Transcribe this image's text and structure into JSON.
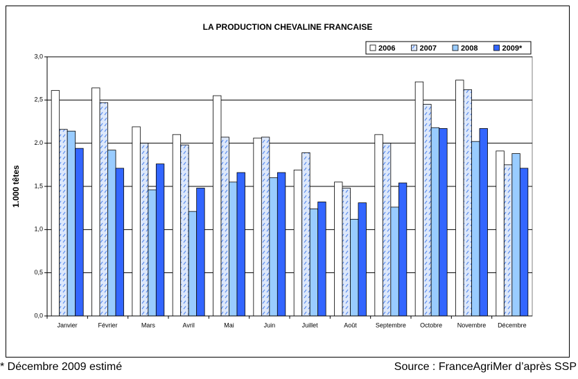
{
  "chart_data": {
    "type": "bar",
    "title": "LA PRODUCTION CHEVALINE FRANCAISE",
    "y_label": "1.000 têtes",
    "categories": [
      "Janvier",
      "Février",
      "Mars",
      "Avril",
      "Mai",
      "Juin",
      "Juillet",
      "Août",
      "Septembre",
      "Octobre",
      "Novembre",
      "Décembre"
    ],
    "series": [
      {
        "name": "2006",
        "color": "#ffffff",
        "values": [
          2.61,
          2.64,
          2.19,
          2.1,
          2.55,
          2.06,
          1.69,
          1.55,
          2.1,
          2.71,
          2.73,
          1.91
        ]
      },
      {
        "name": "2007",
        "color": "#dde8fb",
        "pattern": "hatch",
        "values": [
          2.16,
          2.47,
          2.0,
          1.98,
          2.07,
          2.07,
          1.89,
          1.48,
          2.0,
          2.45,
          2.62,
          1.75
        ]
      },
      {
        "name": "2008",
        "color": "#99ccff",
        "values": [
          2.14,
          1.92,
          1.46,
          1.21,
          1.55,
          1.6,
          1.24,
          1.12,
          1.26,
          2.18,
          2.02,
          1.88
        ]
      },
      {
        "name": "2009*",
        "color": "#3366ff",
        "values": [
          1.94,
          1.71,
          1.76,
          1.48,
          1.66,
          1.66,
          1.32,
          1.31,
          1.54,
          2.17,
          2.17,
          1.71
        ]
      }
    ],
    "ylim": [
      0,
      3
    ],
    "yticks": [
      {
        "value": 0,
        "label": "0,0"
      },
      {
        "value": 0.5,
        "label": "0,5"
      },
      {
        "value": 1,
        "label": "1,0"
      },
      {
        "value": 1.5,
        "label": "1,5"
      },
      {
        "value": 2,
        "label": "2.0"
      },
      {
        "value": 2.5,
        "label": "2,5"
      },
      {
        "value": 3,
        "label": "3,0"
      }
    ],
    "grid": true,
    "legend": "top-right",
    "note": "* Décembre 2009 estimé",
    "source": "Source : FranceAgriMer d’après SSP"
  }
}
